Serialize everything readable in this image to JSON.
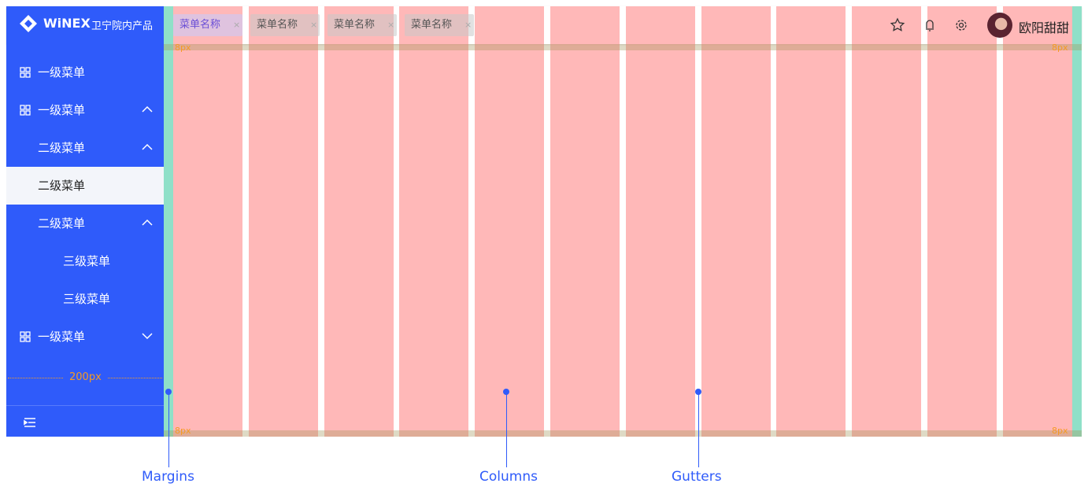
{
  "sidebar": {
    "logo": "WiNEX",
    "product": "卫宁院内产品",
    "menu": [
      {
        "label": "一级菜单",
        "level": 1,
        "arrow": "none"
      },
      {
        "label": "一级菜单",
        "level": 1,
        "arrow": "up"
      },
      {
        "label": "二级菜单",
        "level": 2,
        "arrow": "up"
      },
      {
        "label": "二级菜单",
        "level": 2,
        "arrow": "none",
        "selected": true
      },
      {
        "label": "二级菜单",
        "level": 2,
        "arrow": "up"
      },
      {
        "label": "三级菜单",
        "level": 3,
        "arrow": "none"
      },
      {
        "label": "三级菜单",
        "level": 3,
        "arrow": "none"
      },
      {
        "label": "一级菜单",
        "level": 1,
        "arrow": "down"
      }
    ],
    "width_label": "200px"
  },
  "tabs": [
    {
      "label": "菜单名称",
      "active": true
    },
    {
      "label": "菜单名称"
    },
    {
      "label": "菜单名称"
    },
    {
      "label": "菜单名称"
    }
  ],
  "user": {
    "name": "欧阳甜甜"
  },
  "spacing_labels": [
    "8px",
    "8px",
    "8px",
    "8px"
  ],
  "annotations": [
    "Margins",
    "Columns",
    "Gutters"
  ]
}
